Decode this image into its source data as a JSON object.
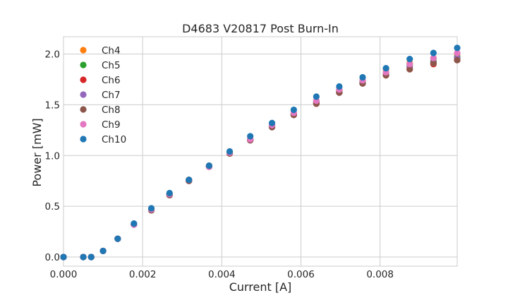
{
  "chart_data": {
    "type": "scatter",
    "title": "D4683 V20817 Post Burn-In",
    "xlabel": "Current [A]",
    "ylabel": "Power [mW]",
    "xlim": [
      0,
      0.00995
    ],
    "ylim": [
      -0.09,
      2.17
    ],
    "grid": true,
    "legend_position": "top-left",
    "x_ticks": [
      0,
      0.002,
      0.004,
      0.006,
      0.008
    ],
    "x_tick_labels": [
      "0.000",
      "0.002",
      "0.004",
      "0.006",
      "0.008"
    ],
    "y_ticks": [
      0,
      0.5,
      1.0,
      1.5,
      2.0
    ],
    "y_tick_labels": [
      "0.0",
      "0.5",
      "1.0",
      "1.5",
      "2.0"
    ],
    "x": [
      0.0,
      0.0005,
      0.0007,
      0.001,
      0.00137,
      0.00178,
      0.00222,
      0.00268,
      0.00317,
      0.00368,
      0.0042,
      0.00472,
      0.00527,
      0.00582,
      0.00639,
      0.00697,
      0.00756,
      0.00815,
      0.00875,
      0.00935,
      0.00995
    ],
    "series": [
      {
        "name": "Ch4",
        "color": "#ff7f0e",
        "values": [
          0.0,
          0.0,
          0.0,
          0.06,
          0.18,
          0.32,
          0.47,
          0.62,
          0.76,
          0.9,
          1.03,
          1.16,
          1.29,
          1.41,
          1.53,
          1.64,
          1.73,
          1.85,
          1.91,
          1.96,
          2.0
        ]
      },
      {
        "name": "Ch5",
        "color": "#2ca02c",
        "values": [
          0.0,
          0.0,
          0.0,
          0.06,
          0.18,
          0.32,
          0.47,
          0.62,
          0.76,
          0.89,
          1.03,
          1.16,
          1.29,
          1.41,
          1.53,
          1.63,
          1.73,
          1.82,
          1.89,
          1.93,
          1.97
        ]
      },
      {
        "name": "Ch6",
        "color": "#d62728",
        "values": [
          0.0,
          0.0,
          0.0,
          0.06,
          0.18,
          0.32,
          0.46,
          0.61,
          0.75,
          0.89,
          1.02,
          1.15,
          1.28,
          1.4,
          1.51,
          1.62,
          1.71,
          1.79,
          1.85,
          1.9,
          1.94
        ]
      },
      {
        "name": "Ch7",
        "color": "#9467bd",
        "values": [
          0.0,
          0.0,
          0.0,
          0.06,
          0.18,
          0.32,
          0.46,
          0.61,
          0.75,
          0.89,
          1.02,
          1.15,
          1.28,
          1.4,
          1.52,
          1.62,
          1.71,
          1.8,
          1.87,
          1.92,
          1.96
        ]
      },
      {
        "name": "Ch8",
        "color": "#8c564b",
        "values": [
          0.0,
          0.0,
          0.0,
          0.06,
          0.18,
          0.32,
          0.46,
          0.61,
          0.75,
          0.89,
          1.02,
          1.15,
          1.28,
          1.4,
          1.51,
          1.62,
          1.71,
          1.79,
          1.85,
          1.91,
          1.94
        ]
      },
      {
        "name": "Ch9",
        "color": "#e377c2",
        "values": [
          0.0,
          0.0,
          0.0,
          0.06,
          0.18,
          0.32,
          0.47,
          0.62,
          0.76,
          0.89,
          1.03,
          1.16,
          1.3,
          1.42,
          1.54,
          1.65,
          1.74,
          1.82,
          1.9,
          1.96,
          2.01
        ]
      },
      {
        "name": "Ch10",
        "color": "#1f77b4",
        "values": [
          0.0,
          0.0,
          0.0,
          0.06,
          0.18,
          0.33,
          0.48,
          0.63,
          0.76,
          0.9,
          1.04,
          1.19,
          1.32,
          1.45,
          1.58,
          1.68,
          1.77,
          1.86,
          1.95,
          2.01,
          2.06
        ]
      }
    ]
  }
}
